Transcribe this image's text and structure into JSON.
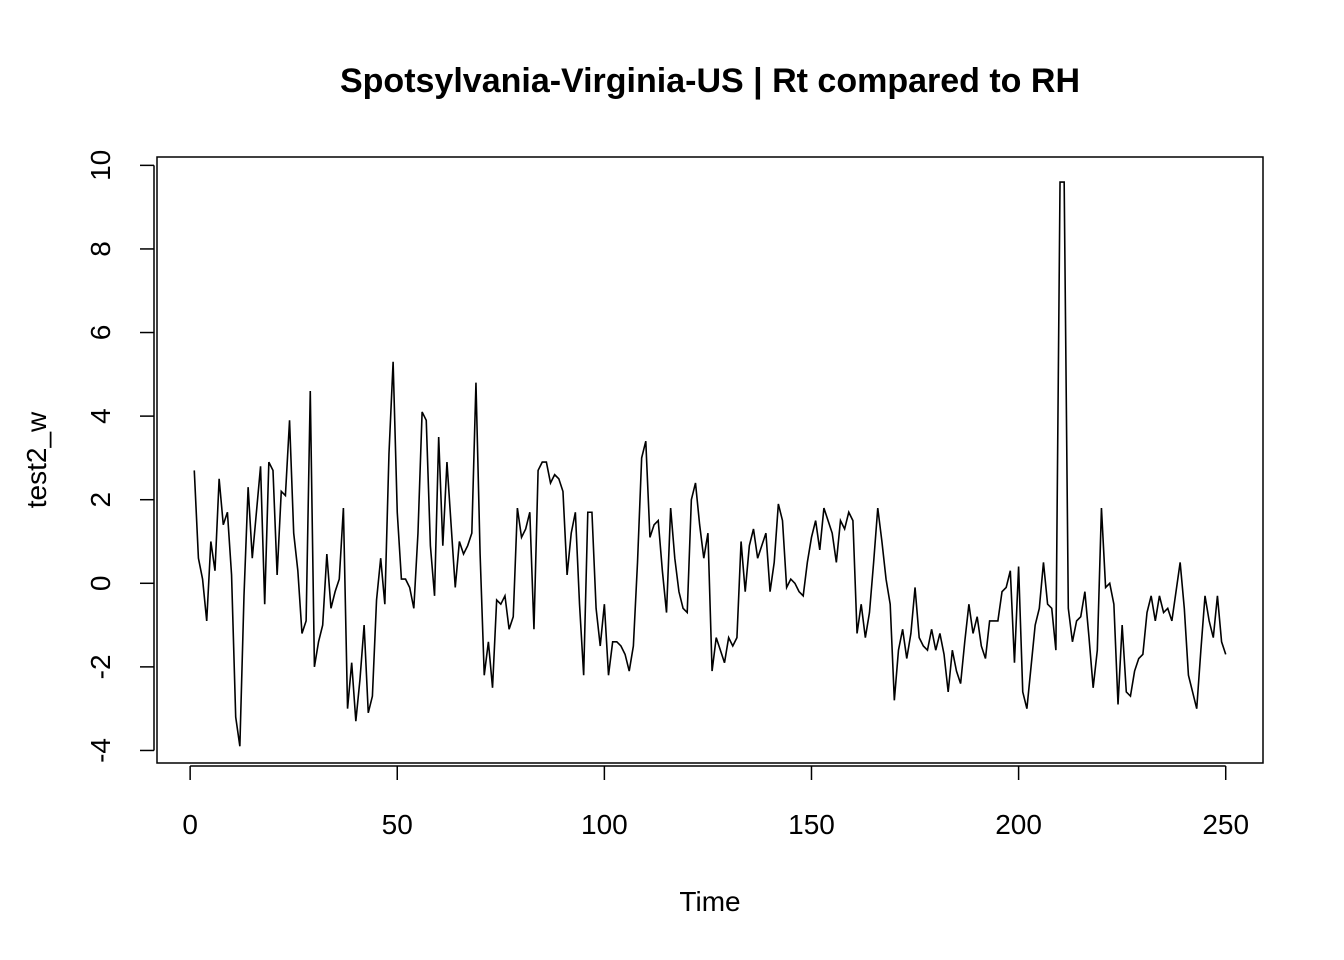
{
  "chart_data": {
    "type": "line",
    "title": "Spotsylvania-Virginia-US | Rt compared to RH",
    "xlabel": "Time",
    "ylabel": "test2_w",
    "xlim": [
      -8,
      259
    ],
    "ylim": [
      -4.3,
      10.2
    ],
    "x_ticks": [
      0,
      50,
      100,
      150,
      200,
      250
    ],
    "y_ticks": [
      -4,
      -2,
      0,
      2,
      4,
      6,
      8,
      10
    ],
    "x_tick_labels": [
      "0",
      "50",
      "100",
      "150",
      "200",
      "250"
    ],
    "y_tick_labels": [
      "-4",
      "-2",
      "0",
      "2",
      "4",
      "6",
      "8",
      "10"
    ],
    "grid": false,
    "line_color": "#000000",
    "x_start": 1,
    "values": [
      2.7,
      0.6,
      0.1,
      -0.9,
      1.0,
      0.3,
      2.5,
      1.4,
      1.7,
      0.2,
      -3.2,
      -3.9,
      -0.3,
      2.3,
      0.6,
      1.7,
      2.8,
      -0.5,
      2.9,
      2.7,
      0.2,
      2.2,
      2.1,
      3.9,
      1.2,
      0.3,
      -1.2,
      -0.9,
      4.6,
      -2.0,
      -1.4,
      -1.0,
      0.7,
      -0.6,
      -0.2,
      0.1,
      1.8,
      -3.0,
      -1.9,
      -3.3,
      -2.3,
      -1.0,
      -3.1,
      -2.7,
      -0.4,
      0.6,
      -0.5,
      3.1,
      5.3,
      1.7,
      0.1,
      0.1,
      -0.1,
      -0.6,
      1.2,
      4.1,
      3.9,
      0.9,
      -0.3,
      3.5,
      0.9,
      2.9,
      1.4,
      -0.1,
      1.0,
      0.7,
      0.9,
      1.2,
      4.8,
      0.7,
      -2.2,
      -1.4,
      -2.5,
      -0.4,
      -0.5,
      -0.3,
      -1.1,
      -0.8,
      1.8,
      1.1,
      1.3,
      1.7,
      -1.1,
      2.7,
      2.9,
      2.9,
      2.4,
      2.6,
      2.5,
      2.2,
      0.2,
      1.2,
      1.7,
      -0.5,
      -2.2,
      1.7,
      1.7,
      -0.6,
      -1.5,
      -0.5,
      -2.2,
      -1.4,
      -1.4,
      -1.5,
      -1.7,
      -2.1,
      -1.5,
      0.5,
      3.0,
      3.4,
      1.1,
      1.4,
      1.5,
      0.3,
      -0.7,
      1.8,
      0.6,
      -0.2,
      -0.6,
      -0.7,
      2.0,
      2.4,
      1.4,
      0.6,
      1.2,
      -2.1,
      -1.3,
      -1.6,
      -1.9,
      -1.3,
      -1.5,
      -1.3,
      1.0,
      -0.2,
      0.9,
      1.3,
      0.6,
      0.9,
      1.2,
      -0.2,
      0.5,
      1.9,
      1.5,
      -0.1,
      0.1,
      0.0,
      -0.2,
      -0.3,
      0.5,
      1.1,
      1.5,
      0.8,
      1.8,
      1.5,
      1.2,
      0.5,
      1.5,
      1.3,
      1.7,
      1.5,
      -1.2,
      -0.5,
      -1.3,
      -0.7,
      0.5,
      1.8,
      1.0,
      0.1,
      -0.5,
      -2.8,
      -1.6,
      -1.1,
      -1.8,
      -1.2,
      -0.1,
      -1.3,
      -1.5,
      -1.6,
      -1.1,
      -1.6,
      -1.2,
      -1.7,
      -2.6,
      -1.6,
      -2.1,
      -2.4,
      -1.4,
      -0.5,
      -1.2,
      -0.8,
      -1.5,
      -1.8,
      -0.9,
      -0.9,
      -0.9,
      -0.2,
      -0.1,
      0.3,
      -1.9,
      0.4,
      -2.6,
      -3.0,
      -2.0,
      -1.0,
      -0.6,
      0.5,
      -0.5,
      -0.6,
      -1.6,
      9.6,
      9.6,
      -0.6,
      -1.4,
      -0.9,
      -0.8,
      -0.2,
      -1.3,
      -2.5,
      -1.6,
      1.8,
      -0.1,
      0.0,
      -0.5,
      -2.9,
      -1.0,
      -2.6,
      -2.7,
      -2.1,
      -1.8,
      -1.7,
      -0.7,
      -0.3,
      -0.9,
      -0.3,
      -0.7,
      -0.6,
      -0.9,
      -0.2,
      0.5,
      -0.6,
      -2.2,
      -2.6,
      -3.0,
      -1.6,
      -0.3,
      -0.9,
      -1.3,
      -0.3,
      -1.4,
      -1.7
    ]
  }
}
